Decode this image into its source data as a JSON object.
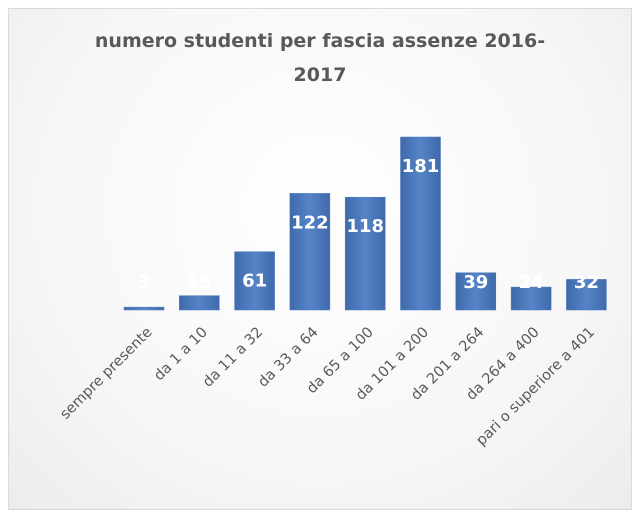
{
  "chart_data": {
    "type": "bar",
    "title": "numero studenti per fascia assenze 2016-2017",
    "categories": [
      "sempre presente",
      "da 1 a 10",
      "da 11 a 32",
      "da 33 a 64",
      "da 65 a 100",
      "da 101 a 200",
      "da 201 a 264",
      "da 264 a 400",
      "pari o superiore a 401"
    ],
    "values": [
      3,
      15,
      61,
      122,
      118,
      181,
      39,
      24,
      32
    ],
    "color": "#4a78bd"
  }
}
